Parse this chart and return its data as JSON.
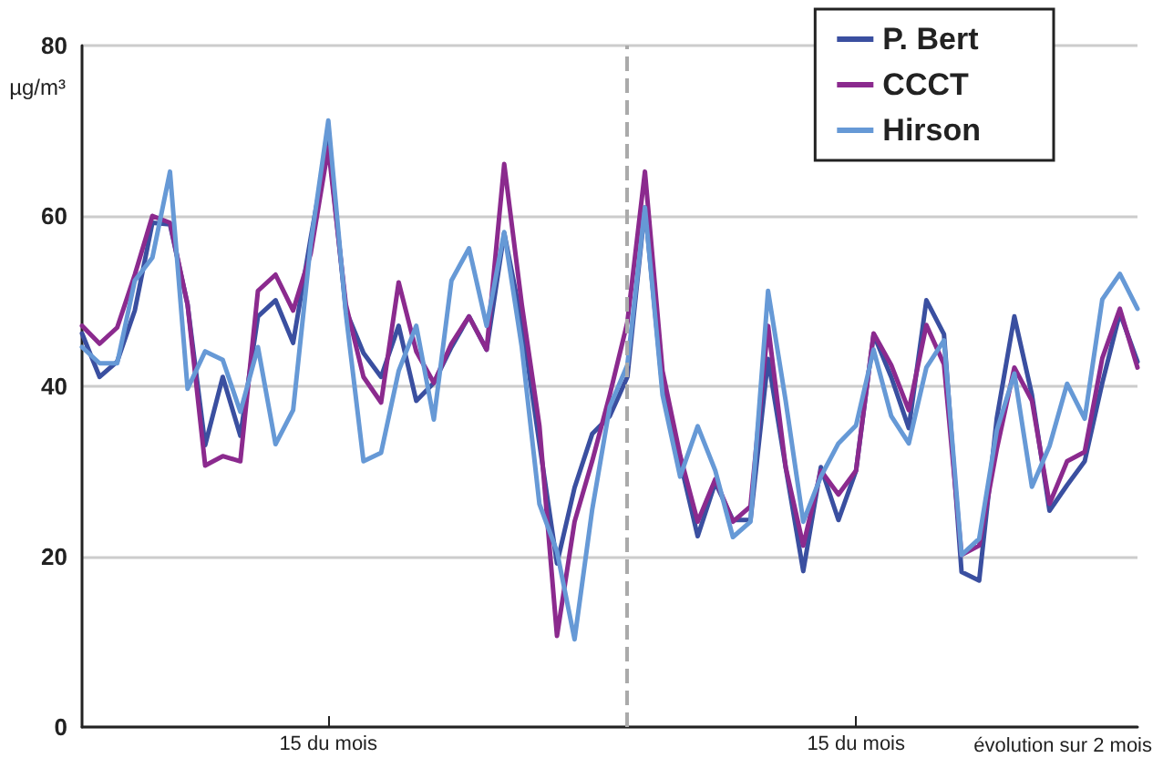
{
  "chart_data": {
    "type": "line",
    "ylabel": "µg/m³",
    "xlabel": "évolution sur 2 mois",
    "categories": [
      null,
      null,
      null,
      null,
      null,
      null,
      null,
      null,
      null,
      null,
      null,
      null,
      null,
      null,
      "15 du mois",
      null,
      null,
      null,
      null,
      null,
      null,
      null,
      null,
      null,
      null,
      null,
      null,
      null,
      null,
      null,
      null,
      null,
      null,
      null,
      null,
      null,
      null,
      null,
      null,
      null,
      null,
      null,
      null,
      null,
      "15 du mois",
      null,
      null,
      null,
      null,
      null,
      null,
      null,
      null,
      null,
      null,
      null,
      null,
      null,
      null,
      null,
      null
    ],
    "ylim": [
      0,
      80
    ],
    "yticks": [
      0,
      20,
      40,
      60,
      80
    ],
    "series": [
      {
        "name": "P. Bert",
        "color": "#3a4fa0",
        "values": [
          46.2,
          41.1,
          42.9,
          48.9,
          59.2,
          59,
          49.6,
          33.1,
          41.1,
          34.2,
          48.2,
          50.1,
          45.1,
          57.4,
          69,
          48.9,
          43.9,
          41.1,
          47.1,
          38.3,
          40.4,
          44.6,
          48.2,
          44.3,
          58,
          47.5,
          33.3,
          19.2,
          28.1,
          34.4,
          36.5,
          41.1,
          61,
          39.7,
          31.2,
          22.4,
          28.7,
          24.3,
          24.3,
          43.2,
          30.5,
          18.3,
          30.5,
          24.3,
          30.1,
          46.1,
          41.1,
          35.1,
          50.1,
          46.1,
          18.2,
          17.2,
          36.2,
          48.2,
          39,
          25.4,
          28.4,
          31.2,
          40.4,
          48.6,
          42.9
        ]
      },
      {
        "name": "CCCT",
        "color": "#8b2a8e",
        "values": [
          47.1,
          45,
          46.9,
          53.1,
          60,
          59.2,
          49.6,
          30.7,
          31.8,
          31.2,
          51.2,
          53.1,
          48.9,
          55.6,
          68,
          49.6,
          41.1,
          38.1,
          52.2,
          44.1,
          40.4,
          45,
          48.2,
          44.3,
          66.1,
          49.6,
          35.4,
          10.7,
          24.1,
          31.2,
          39,
          47.5,
          65.2,
          41.8,
          31.9,
          24.1,
          29.1,
          24.1,
          25.9,
          47.1,
          30.5,
          21.3,
          30.1,
          27.3,
          30.1,
          46.2,
          42.5,
          37.2,
          47.2,
          42.6,
          20.2,
          21.3,
          32.6,
          42.2,
          38.3,
          26.2,
          31.2,
          32.3,
          43.3,
          49.1,
          42.2
        ]
      },
      {
        "name": "Hirson",
        "color": "#6699d6",
        "values": [
          44.6,
          42.7,
          42.7,
          52.4,
          55.1,
          65.2,
          39.7,
          44.1,
          43.1,
          37,
          44.6,
          33.2,
          37.2,
          56.7,
          71.2,
          48.5,
          31.2,
          32.2,
          41.8,
          47.1,
          36.1,
          52.4,
          56.2,
          47.1,
          58.1,
          44.6,
          26.2,
          20.6,
          10.3,
          25.5,
          37.6,
          42.5,
          61,
          39,
          29.4,
          35.3,
          30.1,
          22.3,
          24.1,
          51.2,
          38.3,
          24.1,
          29.4,
          33.3,
          35.4,
          44.3,
          36.5,
          33.3,
          42.2,
          45.4,
          20.2,
          22.1,
          34.8,
          41.5,
          28.2,
          33,
          40.3,
          36.2,
          50.2,
          53.2,
          49.1
        ]
      }
    ],
    "grid": "y",
    "legend": "top right",
    "marker": "none",
    "line_style": "solid"
  }
}
